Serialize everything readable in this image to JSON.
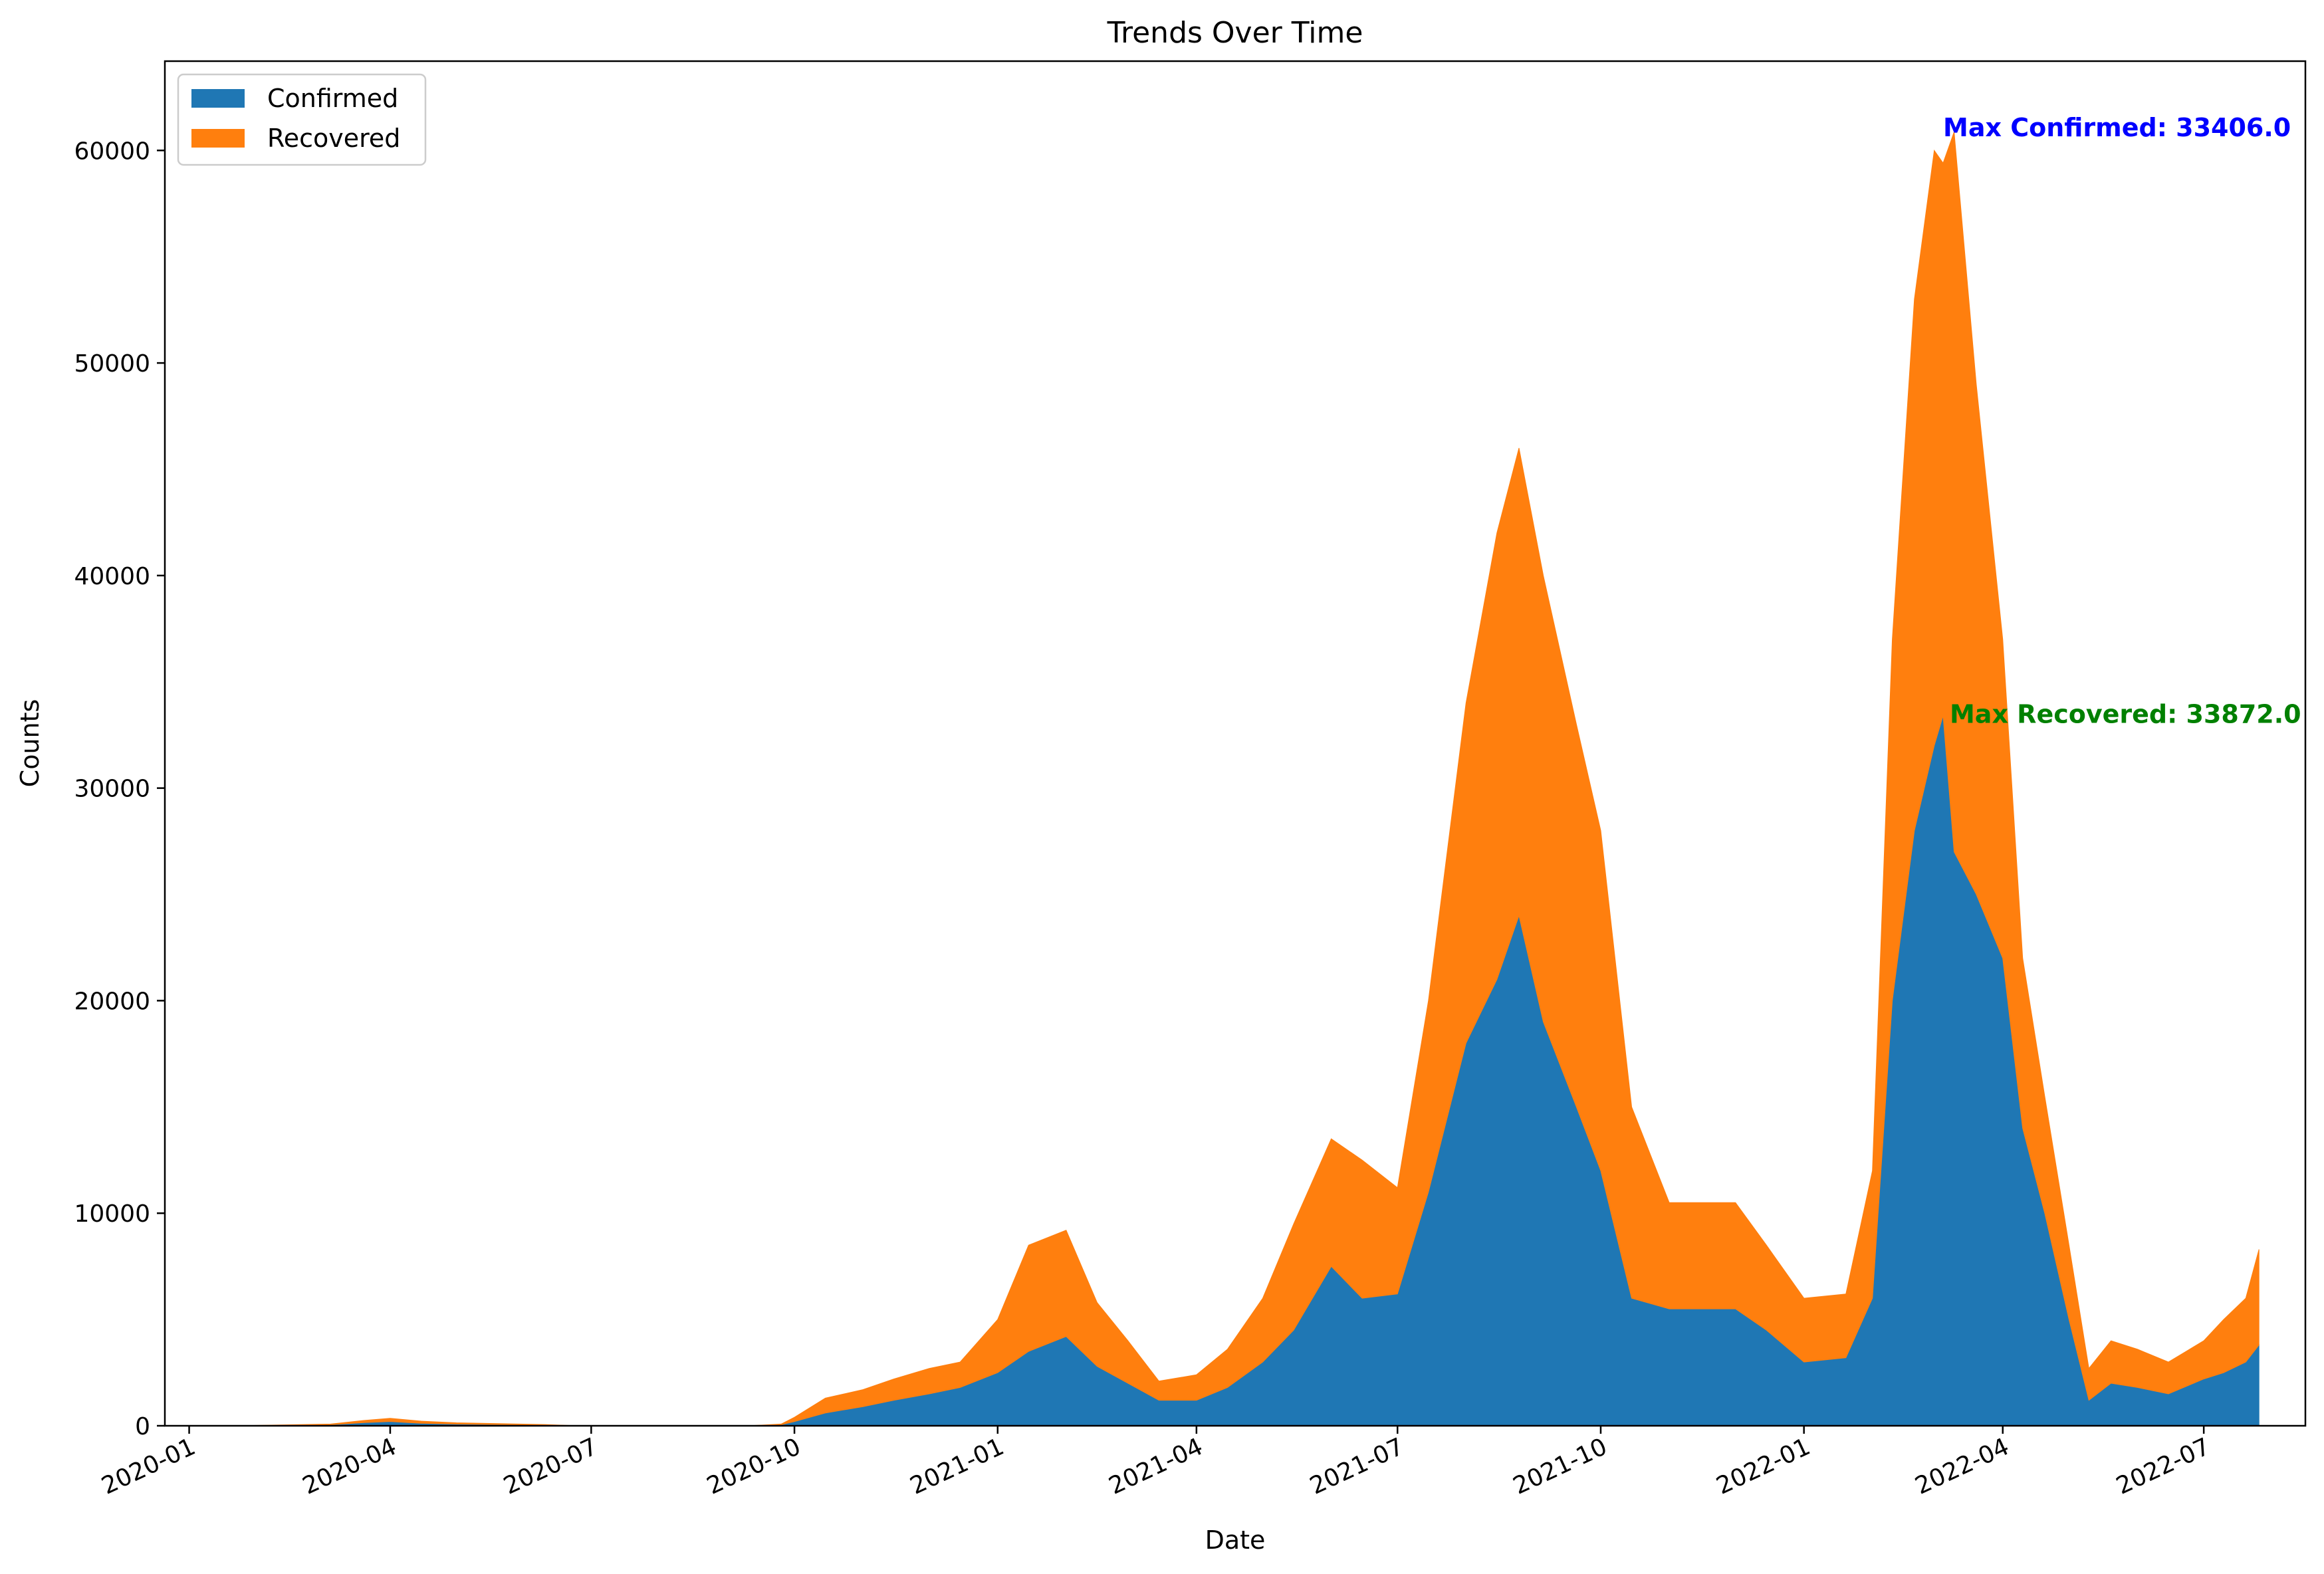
{
  "chart_data": {
    "type": "area",
    "stacked": true,
    "title": "Trends Over Time",
    "xlabel": "Date",
    "ylabel": "Counts",
    "xlim": [
      "2019-12-21",
      "2022-08-16"
    ],
    "ylim": [
      0,
      64200
    ],
    "grid": false,
    "legend_position": "top-left",
    "x_ticks": [
      "2020-01",
      "2020-04",
      "2020-07",
      "2020-10",
      "2021-01",
      "2021-04",
      "2021-07",
      "2021-10",
      "2022-01",
      "2022-04",
      "2022-07"
    ],
    "y_ticks": [
      0,
      10000,
      20000,
      30000,
      40000,
      50000,
      60000
    ],
    "y_tick_labels": [
      "0",
      "10000",
      "20000",
      "30000",
      "40000",
      "50000",
      "60000"
    ],
    "x": [
      "2020-01-22",
      "2020-03-05",
      "2020-03-20",
      "2020-04-01",
      "2020-04-15",
      "2020-05-01",
      "2020-05-20",
      "2020-06-10",
      "2020-06-25",
      "2020-07-15",
      "2020-08-15",
      "2020-09-10",
      "2020-09-25",
      "2020-10-01",
      "2020-10-15",
      "2020-11-01",
      "2020-11-15",
      "2020-12-01",
      "2020-12-15",
      "2021-01-01",
      "2021-01-15",
      "2021-02-01",
      "2021-02-15",
      "2021-03-01",
      "2021-03-15",
      "2021-04-01",
      "2021-04-15",
      "2021-05-01",
      "2021-05-15",
      "2021-06-01",
      "2021-06-15",
      "2021-07-01",
      "2021-07-15",
      "2021-08-01",
      "2021-08-15",
      "2021-08-25",
      "2021-09-05",
      "2021-09-20",
      "2021-10-01",
      "2021-10-15",
      "2021-11-01",
      "2021-11-15",
      "2021-12-01",
      "2021-12-15",
      "2022-01-01",
      "2022-01-20",
      "2022-02-01",
      "2022-02-10",
      "2022-02-20",
      "2022-03-01",
      "2022-03-05",
      "2022-03-10",
      "2022-03-20",
      "2022-04-01",
      "2022-04-10",
      "2022-04-20",
      "2022-05-01",
      "2022-05-10",
      "2022-05-20",
      "2022-06-01",
      "2022-06-15",
      "2022-07-01",
      "2022-07-10",
      "2022-07-20",
      "2022-07-26"
    ],
    "series": [
      {
        "name": "Confirmed",
        "color": "#1f77b4",
        "values": [
          0,
          50,
          150,
          200,
          120,
          80,
          60,
          40,
          0,
          0,
          0,
          0,
          50,
          200,
          600,
          900,
          1200,
          1500,
          1800,
          2500,
          3500,
          4200,
          2800,
          2000,
          1200,
          1200,
          1800,
          3000,
          4500,
          7500,
          6000,
          6200,
          11000,
          18000,
          21000,
          24000,
          19000,
          15000,
          12000,
          6000,
          5500,
          5500,
          5500,
          4500,
          3000,
          3200,
          6000,
          20000,
          28000,
          32000,
          33406,
          27000,
          25000,
          22000,
          14000,
          10000,
          5000,
          1200,
          2000,
          1800,
          1500,
          2200,
          2500,
          3000,
          3800
        ]
      },
      {
        "name": "Recovered",
        "color": "#ff7f0e",
        "values": [
          0,
          30,
          100,
          150,
          100,
          60,
          40,
          20,
          0,
          0,
          0,
          0,
          30,
          200,
          700,
          800,
          1000,
          1200,
          1200,
          2500,
          5000,
          5000,
          3000,
          2000,
          900,
          1200,
          1800,
          3000,
          5000,
          6000,
          6500,
          5000,
          9000,
          16000,
          21000,
          22000,
          21000,
          18000,
          16000,
          9000,
          5000,
          5000,
          5000,
          4000,
          3000,
          3000,
          6000,
          17000,
          25000,
          28000,
          26000,
          33872,
          24000,
          15000,
          8000,
          5500,
          3500,
          1500,
          2000,
          1800,
          1500,
          1800,
          2500,
          3000,
          4500
        ]
      }
    ],
    "annotations": [
      {
        "text": "Max Confirmed: 33406.0",
        "color": "#0000ff",
        "x": "2022-03-05",
        "y": 61100
      },
      {
        "text": "Max Recovered: 33872.0",
        "color": "#008000",
        "x": "2022-03-08",
        "y": 33500
      }
    ]
  }
}
